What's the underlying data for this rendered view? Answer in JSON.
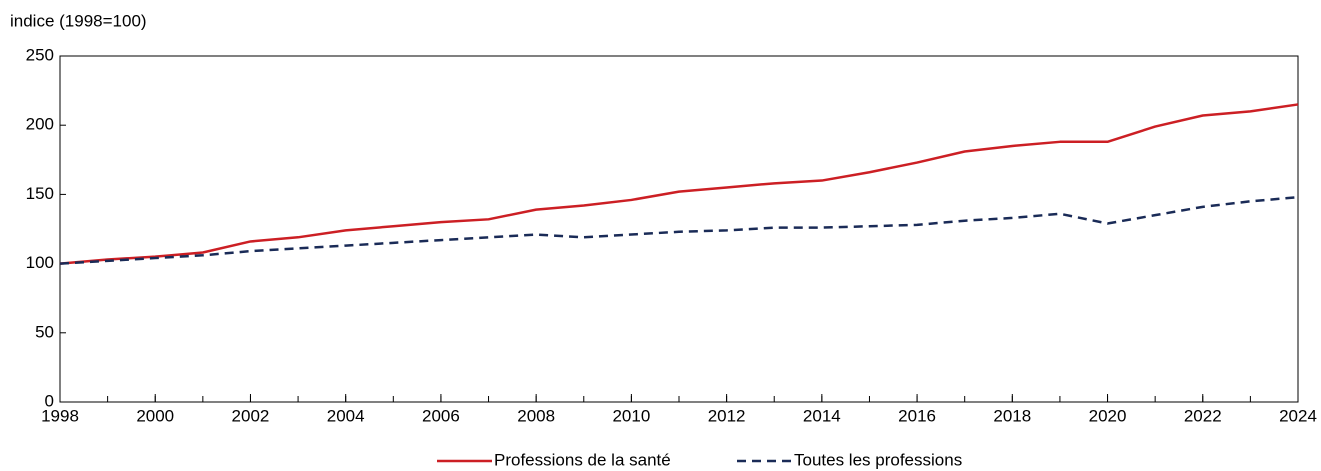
{
  "chart_data": {
    "type": "line",
    "y_label": "indice (1998=100)",
    "x": [
      1998,
      1999,
      2000,
      2001,
      2002,
      2003,
      2004,
      2005,
      2006,
      2007,
      2008,
      2009,
      2010,
      2011,
      2012,
      2013,
      2014,
      2015,
      2016,
      2017,
      2018,
      2019,
      2020,
      2021,
      2022,
      2023,
      2024
    ],
    "series": [
      {
        "name": "Professions de la santé",
        "color": "#cc1f24",
        "dash": false,
        "values": [
          100,
          103,
          105,
          108,
          116,
          119,
          124,
          127,
          130,
          132,
          139,
          142,
          146,
          152,
          155,
          158,
          160,
          166,
          173,
          181,
          185,
          188,
          188,
          199,
          207,
          210,
          215
        ]
      },
      {
        "name": "Toutes les professions",
        "color": "#1a2b57",
        "dash": true,
        "values": [
          100,
          102,
          104,
          106,
          109,
          111,
          113,
          115,
          117,
          119,
          121,
          119,
          121,
          123,
          124,
          126,
          126,
          127,
          128,
          131,
          133,
          136,
          129,
          135,
          141,
          145,
          148
        ]
      }
    ],
    "xlim": [
      1998,
      2024
    ],
    "xticks": [
      1998,
      2000,
      2002,
      2004,
      2006,
      2008,
      2010,
      2012,
      2014,
      2016,
      2018,
      2020,
      2022,
      2024
    ],
    "ylim": [
      0,
      250
    ],
    "yticks": [
      0,
      50,
      100,
      150,
      200,
      250
    ],
    "grid": false,
    "legend": "bottom"
  }
}
